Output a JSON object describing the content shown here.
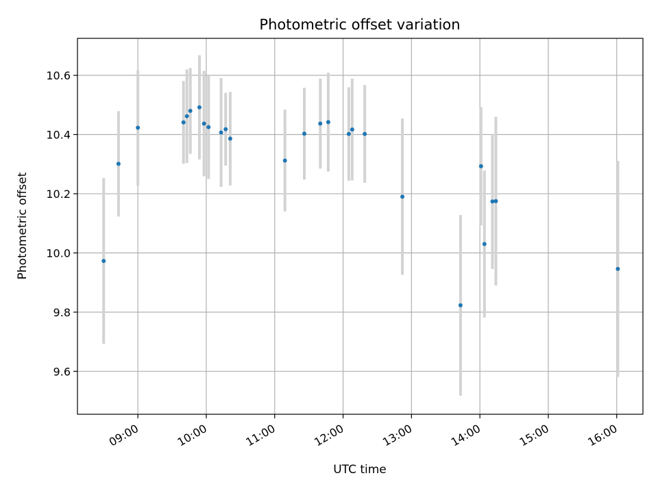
{
  "chart_data": {
    "type": "scatter",
    "title": "Photometric offset variation",
    "xlabel": "UTC time",
    "ylabel": "Photometric offset",
    "xlim": [
      "08:07",
      "16:23"
    ],
    "ylim": [
      9.455,
      10.725
    ],
    "x_ticks": [
      "09:00",
      "10:00",
      "11:00",
      "12:00",
      "13:00",
      "14:00",
      "15:00",
      "16:00"
    ],
    "y_ticks": [
      9.6,
      9.8,
      10.0,
      10.2,
      10.4,
      10.6
    ],
    "y_tick_labels": [
      "9.6",
      "9.8",
      "10.0",
      "10.2",
      "10.4",
      "10.6"
    ],
    "grid": true,
    "colors": {
      "point": "#1f77b4",
      "errorbar": "#d3d3d3",
      "grid": "#b0b0b0"
    },
    "points": [
      {
        "x": "08:30",
        "y": 9.973,
        "yerr": 0.28
      },
      {
        "x": "08:43",
        "y": 10.301,
        "yerr": 0.178
      },
      {
        "x": "09:00",
        "y": 10.423,
        "yerr": 0.195
      },
      {
        "x": "09:40",
        "y": 10.441,
        "yerr": 0.14
      },
      {
        "x": "09:43",
        "y": 10.462,
        "yerr": 0.158
      },
      {
        "x": "09:46",
        "y": 10.48,
        "yerr": 0.145
      },
      {
        "x": "09:54",
        "y": 10.492,
        "yerr": 0.176
      },
      {
        "x": "09:58",
        "y": 10.437,
        "yerr": 0.178
      },
      {
        "x": "10:02",
        "y": 10.425,
        "yerr": 0.175
      },
      {
        "x": "10:13",
        "y": 10.407,
        "yerr": 0.184
      },
      {
        "x": "10:17",
        "y": 10.418,
        "yerr": 0.123
      },
      {
        "x": "10:21",
        "y": 10.386,
        "yerr": 0.158
      },
      {
        "x": "11:09",
        "y": 10.312,
        "yerr": 0.172
      },
      {
        "x": "11:26",
        "y": 10.403,
        "yerr": 0.155
      },
      {
        "x": "11:40",
        "y": 10.437,
        "yerr": 0.152
      },
      {
        "x": "11:47",
        "y": 10.442,
        "yerr": 0.167
      },
      {
        "x": "12:05",
        "y": 10.402,
        "yerr": 0.158
      },
      {
        "x": "12:08",
        "y": 10.417,
        "yerr": 0.172
      },
      {
        "x": "12:19",
        "y": 10.402,
        "yerr": 0.165
      },
      {
        "x": "12:52",
        "y": 10.19,
        "yerr": 0.264
      },
      {
        "x": "13:43",
        "y": 9.823,
        "yerr": 0.305
      },
      {
        "x": "14:01",
        "y": 10.293,
        "yerr": 0.2
      },
      {
        "x": "14:04",
        "y": 10.03,
        "yerr": 0.248
      },
      {
        "x": "14:11",
        "y": 10.174,
        "yerr": 0.228
      },
      {
        "x": "14:14",
        "y": 10.175,
        "yerr": 0.285
      },
      {
        "x": "16:01",
        "y": 9.946,
        "yerr": 0.365
      }
    ]
  }
}
